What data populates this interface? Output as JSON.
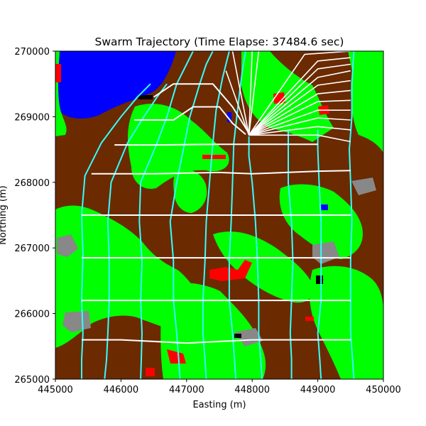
{
  "chart_data": {
    "type": "line",
    "title": "Swarm Trajectory (Time Elapse: 37484.6 sec)",
    "xlabel": "Easting (m)",
    "ylabel": "Northing (m)",
    "xlim": [
      445000,
      450000
    ],
    "ylim": [
      265000,
      270000
    ],
    "xticks": [
      "445000",
      "446000",
      "447000",
      "448000",
      "449000",
      "450000"
    ],
    "yticks": [
      "265000",
      "266000",
      "267000",
      "268000",
      "269000",
      "270000"
    ],
    "grid": false,
    "legend": "none",
    "colors": {
      "terrain_brown": "#6b2a00",
      "vegetation_green": "#00ff00",
      "water_blue": "#0000ff",
      "rock_gray": "#888888",
      "hazard_red": "#ff0000",
      "obstacle_black": "#000000",
      "trajectory_cyan": "#33ffff",
      "formation_white": "#ffffff"
    },
    "trajectories": [
      {
        "points": [
          [
            445400,
            265000
          ],
          [
            445400,
            265300
          ],
          [
            445420,
            265700
          ],
          [
            445400,
            266200
          ],
          [
            445420,
            266900
          ],
          [
            445400,
            267500
          ],
          [
            445450,
            268100
          ],
          [
            445700,
            268600
          ],
          [
            446000,
            269000
          ],
          [
            446250,
            269300
          ],
          [
            446450,
            269500
          ]
        ]
      },
      {
        "points": [
          [
            445750,
            265000
          ],
          [
            445780,
            265300
          ],
          [
            445800,
            265700
          ],
          [
            445820,
            266200
          ],
          [
            445820,
            266800
          ],
          [
            445800,
            267400
          ],
          [
            445850,
            268000
          ],
          [
            446100,
            268600
          ],
          [
            446350,
            269000
          ],
          [
            446550,
            269300
          ],
          [
            446700,
            269500
          ]
        ]
      },
      {
        "points": [
          [
            446300,
            265000
          ],
          [
            446310,
            265300
          ],
          [
            446320,
            265700
          ],
          [
            446300,
            266200
          ],
          [
            446320,
            266800
          ],
          [
            446280,
            267400
          ],
          [
            446300,
            268000
          ],
          [
            446550,
            268600
          ],
          [
            446700,
            269000
          ],
          [
            446850,
            269500
          ],
          [
            447000,
            269800
          ],
          [
            447100,
            270000
          ]
        ]
      },
      {
        "points": [
          [
            446900,
            265000
          ],
          [
            446880,
            265300
          ],
          [
            446850,
            265700
          ],
          [
            446800,
            266200
          ],
          [
            446800,
            266800
          ],
          [
            446750,
            267400
          ],
          [
            446850,
            268000
          ],
          [
            446950,
            268500
          ],
          [
            447050,
            269000
          ],
          [
            447200,
            269500
          ],
          [
            447300,
            269800
          ],
          [
            447400,
            270000
          ]
        ]
      },
      {
        "points": [
          [
            447300,
            265000
          ],
          [
            447280,
            265300
          ],
          [
            447250,
            265700
          ],
          [
            447250,
            266200
          ],
          [
            447280,
            266800
          ],
          [
            447300,
            267400
          ],
          [
            447350,
            268000
          ],
          [
            447400,
            268600
          ],
          [
            447450,
            269100
          ],
          [
            447550,
            269600
          ],
          [
            447650,
            270000
          ]
        ]
      },
      {
        "points": [
          [
            447750,
            265000
          ],
          [
            447730,
            265300
          ],
          [
            447700,
            265700
          ],
          [
            447650,
            266200
          ],
          [
            447650,
            266800
          ],
          [
            447680,
            267400
          ],
          [
            447700,
            268000
          ],
          [
            447720,
            268600
          ],
          [
            447800,
            269300
          ],
          [
            447850,
            269700
          ],
          [
            447900,
            270000
          ]
        ]
      },
      {
        "points": [
          [
            448150,
            265000
          ],
          [
            448130,
            265300
          ],
          [
            448100,
            265700
          ],
          [
            448100,
            266200
          ],
          [
            448080,
            266800
          ],
          [
            448050,
            267400
          ],
          [
            448000,
            268000
          ],
          [
            447950,
            268400
          ],
          [
            447950,
            268700
          ]
        ]
      },
      {
        "points": [
          [
            448600,
            265000
          ],
          [
            448600,
            265300
          ],
          [
            448580,
            265700
          ],
          [
            448600,
            266200
          ],
          [
            448620,
            266800
          ],
          [
            448600,
            267400
          ],
          [
            448550,
            268000
          ],
          [
            448550,
            268500
          ],
          [
            448550,
            268800
          ]
        ]
      },
      {
        "points": [
          [
            449050,
            265000
          ],
          [
            449030,
            265300
          ],
          [
            449000,
            265700
          ],
          [
            449050,
            266200
          ],
          [
            449050,
            266800
          ],
          [
            449050,
            267400
          ],
          [
            449020,
            268000
          ],
          [
            449000,
            268500
          ],
          [
            449000,
            268800
          ]
        ]
      },
      {
        "points": [
          [
            449550,
            265000
          ],
          [
            449530,
            265300
          ],
          [
            449500,
            265700
          ],
          [
            449500,
            266200
          ],
          [
            449500,
            266800
          ],
          [
            449520,
            267400
          ],
          [
            449500,
            268000
          ],
          [
            449480,
            268500
          ],
          [
            449520,
            269000
          ],
          [
            449520,
            269500
          ],
          [
            449550,
            270000
          ]
        ]
      }
    ],
    "formation_lines": [
      {
        "points": [
          [
            445400,
            265600
          ],
          [
            446000,
            265600
          ],
          [
            447000,
            265550
          ],
          [
            448000,
            265600
          ],
          [
            449500,
            265600
          ]
        ]
      },
      {
        "points": [
          [
            445400,
            266200
          ],
          [
            446500,
            266200
          ],
          [
            447500,
            266200
          ],
          [
            448500,
            266200
          ],
          [
            449500,
            266200
          ]
        ]
      },
      {
        "points": [
          [
            445400,
            266850
          ],
          [
            446500,
            266850
          ],
          [
            447500,
            266850
          ],
          [
            448500,
            266850
          ],
          [
            449500,
            266850
          ]
        ]
      },
      {
        "points": [
          [
            445400,
            267500
          ],
          [
            446500,
            267500
          ],
          [
            447500,
            267500
          ],
          [
            448500,
            267500
          ],
          [
            449500,
            267500
          ]
        ]
      },
      {
        "points": [
          [
            445550,
            268130
          ],
          [
            446500,
            268130
          ],
          [
            447500,
            268150
          ],
          [
            448000,
            268130
          ],
          [
            449000,
            268170
          ],
          [
            449500,
            268180
          ]
        ]
      },
      {
        "points": [
          [
            445900,
            268570
          ],
          [
            446500,
            268570
          ],
          [
            447500,
            268580
          ],
          [
            448500,
            268580
          ],
          [
            449000,
            268580
          ]
        ]
      },
      {
        "points": [
          [
            446200,
            268950
          ],
          [
            446800,
            268950
          ],
          [
            447100,
            269150
          ],
          [
            447500,
            269150
          ],
          [
            447700,
            268900
          ],
          [
            447900,
            268730
          ]
        ]
      },
      {
        "points": [
          [
            446500,
            269300
          ],
          [
            446800,
            269500
          ],
          [
            447300,
            269500
          ],
          [
            447400,
            269500
          ],
          [
            447700,
            269150
          ],
          [
            447950,
            268750
          ]
        ]
      }
    ],
    "fan_lines": [
      {
        "points": [
          [
            447950,
            268720
          ],
          [
            449000,
            268720
          ],
          [
            449500,
            268620
          ]
        ]
      },
      {
        "points": [
          [
            447950,
            268720
          ],
          [
            449000,
            268850
          ],
          [
            449500,
            268800
          ]
        ]
      },
      {
        "points": [
          [
            447950,
            268720
          ],
          [
            449000,
            268980
          ],
          [
            449500,
            268950
          ]
        ]
      },
      {
        "points": [
          [
            447950,
            268720
          ],
          [
            449000,
            269100
          ],
          [
            449500,
            269100
          ]
        ]
      },
      {
        "points": [
          [
            447950,
            268720
          ],
          [
            449000,
            269230
          ],
          [
            449500,
            269250
          ]
        ]
      },
      {
        "points": [
          [
            447950,
            268720
          ],
          [
            449000,
            269350
          ],
          [
            449500,
            269400
          ]
        ]
      },
      {
        "points": [
          [
            447950,
            268720
          ],
          [
            449000,
            269480
          ],
          [
            449500,
            269550
          ]
        ]
      },
      {
        "points": [
          [
            447950,
            268720
          ],
          [
            449000,
            269600
          ],
          [
            449500,
            269700
          ]
        ]
      },
      {
        "points": [
          [
            447950,
            268720
          ],
          [
            449000,
            269730
          ],
          [
            449500,
            269800
          ]
        ]
      },
      {
        "points": [
          [
            447950,
            268720
          ],
          [
            449000,
            269850
          ],
          [
            449500,
            269900
          ]
        ]
      },
      {
        "points": [
          [
            447950,
            268720
          ],
          [
            448800,
            269950
          ],
          [
            449500,
            270000
          ]
        ]
      },
      {
        "points": [
          [
            447950,
            268720
          ],
          [
            448100,
            270000
          ]
        ]
      },
      {
        "points": [
          [
            447950,
            268720
          ],
          [
            448000,
            270000
          ]
        ]
      },
      {
        "points": [
          [
            447950,
            268720
          ],
          [
            447700,
            270000
          ]
        ]
      },
      {
        "points": [
          [
            447950,
            268720
          ],
          [
            447600,
            269700
          ]
        ]
      }
    ]
  }
}
